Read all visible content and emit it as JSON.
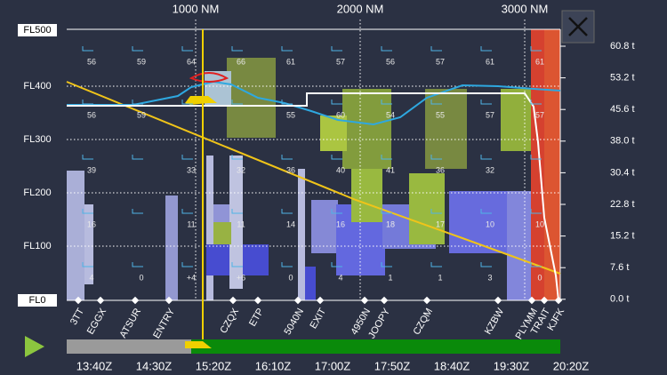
{
  "top_axis": [
    "1000 NM",
    "2000 NM",
    "3000 NM"
  ],
  "left_axis": [
    "FL500",
    "FL400",
    "FL300",
    "FL200",
    "FL100",
    "FL0"
  ],
  "right_axis": [
    "60.8 t",
    "53.2 t",
    "45.6 t",
    "38.0 t",
    "30.4 t",
    "22.8 t",
    "15.2 t",
    "7.6 t",
    "0.0 t"
  ],
  "waypoints": [
    "3TT",
    "EGGX",
    "ATSUR",
    "ENTRY",
    "CZQX",
    "ETP",
    "5040N",
    "EXIT",
    "4950N",
    "JOOPY",
    "CZQM",
    "KZBW",
    "PLYMM",
    "TRAIT",
    "KJFK"
  ],
  "times": [
    "13:40Z",
    "14:30Z",
    "15:20Z",
    "16:10Z",
    "17:00Z",
    "17:50Z",
    "18:40Z",
    "19:30Z",
    "20:20Z"
  ],
  "winds": [
    [
      "56",
      "59",
      "64",
      "66",
      "61",
      "57",
      "56",
      "57",
      "61",
      "61"
    ],
    [
      "56",
      "59",
      null,
      null,
      "55",
      "60",
      "54",
      "55",
      "57",
      "57"
    ],
    [
      "39",
      null,
      "33",
      "32",
      "36",
      "40",
      "41",
      "36",
      "32",
      null
    ],
    [
      "16",
      null,
      "11",
      "11",
      "14",
      "16",
      "18",
      "17",
      "10",
      "10"
    ],
    [
      "4",
      "0",
      "+4",
      "+6",
      "0",
      "4",
      "1",
      "1",
      "3",
      "0"
    ]
  ]
}
